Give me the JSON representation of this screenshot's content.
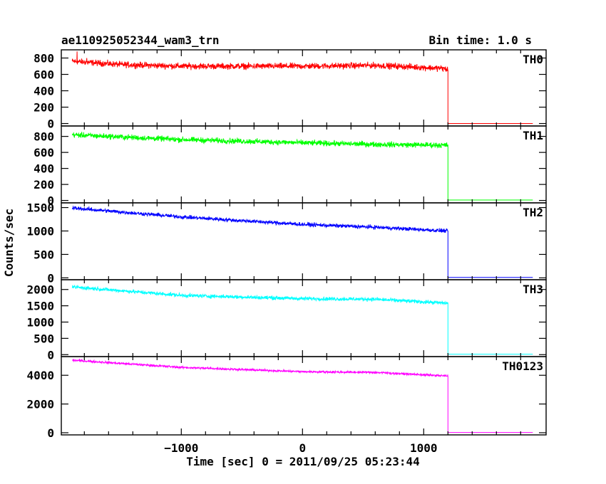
{
  "chart_data": {
    "type": "line",
    "title": "ae110925052344_wam3_trn",
    "subtitle": "Bin time: 1.0 s",
    "xlabel": "Time [sec] 0 = 2011/09/25 05:23:44",
    "ylabel": "Counts/sec",
    "xlim": [
      -1990,
      2010
    ],
    "x_ticks": [
      -1000,
      0,
      1000
    ],
    "x_tick_labels": [
      "−1000",
      "0",
      "1000"
    ],
    "data_start": -1900,
    "drop_time": 1200,
    "data_end": 1900,
    "panels": [
      {
        "name": "TH0",
        "color": "#ff0000",
        "ylim": [
          -30,
          900
        ],
        "y_ticks": [
          0,
          200,
          400,
          600,
          800
        ],
        "trend": [
          [
            -1900,
            760
          ],
          [
            -1500,
            720
          ],
          [
            -1000,
            700
          ],
          [
            0,
            700
          ],
          [
            600,
            710
          ],
          [
            1150,
            675
          ],
          [
            1195,
            660
          ]
        ],
        "noise": 55,
        "after_level": 0,
        "spikes": [
          [
            -1860,
            880
          ],
          [
            -1780,
            800
          ]
        ]
      },
      {
        "name": "TH1",
        "color": "#00ff00",
        "ylim": [
          -30,
          930
        ],
        "y_ticks": [
          0,
          200,
          400,
          600,
          800
        ],
        "trend": [
          [
            -1900,
            820
          ],
          [
            -1000,
            760
          ],
          [
            0,
            720
          ],
          [
            600,
            700
          ],
          [
            1195,
            690
          ]
        ],
        "noise": 50,
        "after_level": 5,
        "spikes": []
      },
      {
        "name": "TH2",
        "color": "#0000ff",
        "ylim": [
          -40,
          1600
        ],
        "y_ticks": [
          0,
          500,
          1000,
          1500
        ],
        "trend": [
          [
            -1900,
            1490
          ],
          [
            -1000,
            1300
          ],
          [
            0,
            1140
          ],
          [
            600,
            1080
          ],
          [
            1195,
            1000
          ]
        ],
        "noise": 60,
        "after_level": 10,
        "spikes": []
      },
      {
        "name": "TH3",
        "color": "#00ffff",
        "ylim": [
          -60,
          2300
        ],
        "y_ticks": [
          0,
          500,
          1000,
          1500,
          2000
        ],
        "trend": [
          [
            -1900,
            2080
          ],
          [
            -1000,
            1820
          ],
          [
            0,
            1720
          ],
          [
            600,
            1700
          ],
          [
            1195,
            1580
          ]
        ],
        "noise": 85,
        "after_level": 15,
        "spikes": []
      },
      {
        "name": "TH0123",
        "color": "#ff00ff",
        "ylim": [
          -150,
          5300
        ],
        "y_ticks": [
          0,
          2000,
          4000
        ],
        "trend": [
          [
            -1900,
            5050
          ],
          [
            -1000,
            4550
          ],
          [
            0,
            4250
          ],
          [
            600,
            4200
          ],
          [
            1195,
            3950
          ]
        ],
        "noise": 110,
        "after_level": 20,
        "spikes": []
      }
    ]
  }
}
